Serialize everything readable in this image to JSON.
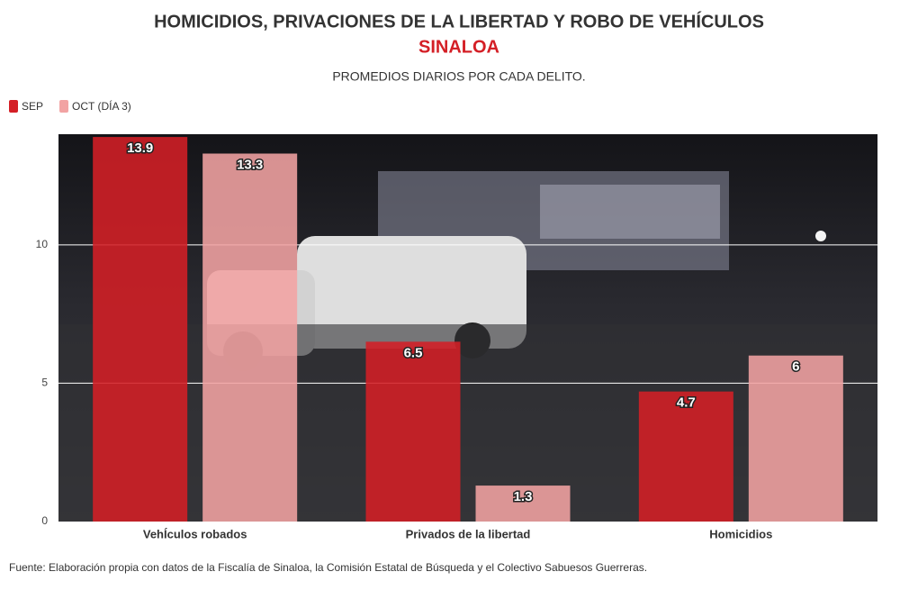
{
  "chart_data": {
    "type": "bar",
    "title": "HOMICIDIOS, PRIVACIONES DE LA LIBERTAD Y ROBO DE VEHÍCULOS",
    "subtitle": "SINALOA",
    "description": "PROMEDIOS DIARIOS POR CADA DELITO.",
    "source": "Fuente: Elaboración propia con datos de la Fiscalía de Sinaloa, la Comisión Estatal de Búsqueda y el Colectivo Sabuesos Guerreras.",
    "categories": [
      "VehÍculos robados",
      "Privados de la libertad",
      "Homicidios"
    ],
    "series": [
      {
        "name": "SEP",
        "color": "#d41f26",
        "values": [
          13.9,
          6.5,
          4.7
        ]
      },
      {
        "name": "OCT (DÍA 3)",
        "color": "#f2a3a3",
        "values": [
          13.3,
          1.3,
          6
        ]
      }
    ],
    "ylim": [
      0,
      14
    ],
    "yticks": [
      0,
      5,
      10
    ],
    "grid": true,
    "legend": "top-left"
  }
}
